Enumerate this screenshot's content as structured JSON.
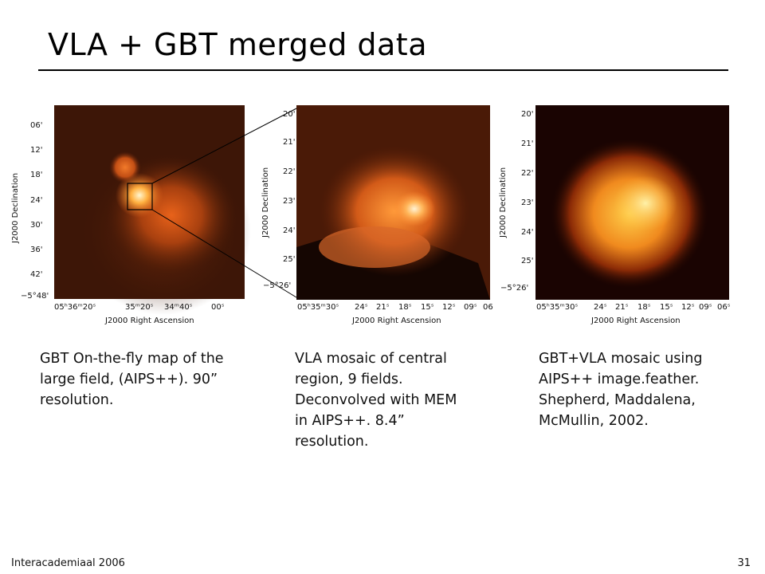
{
  "slide": {
    "title": "VLA + GBT merged data",
    "footer_left": "Interacademiaal 2006",
    "page_number": "31"
  },
  "panels": [
    {
      "y_ticks": [
        "06'",
        "12'",
        "18'",
        "24'",
        "30'",
        "36'",
        "42'",
        "−5°48'"
      ],
      "x_ticks": [
        "05ʰ36ᵐ20ˢ",
        "35ᵐ20ˢ",
        "34ᵐ40ˢ",
        "00ˢ"
      ],
      "x_label": "J2000 Right Ascension",
      "y_label": "J2000 Declination",
      "caption": [
        "GBT On-the-fly map of the",
        "large field, (AIPS++).  90”",
        "resolution."
      ]
    },
    {
      "y_ticks": [
        "20'",
        "21'",
        "22'",
        "23'",
        "24'",
        "25'",
        "−5°26'"
      ],
      "x_ticks": [
        "05ʰ35ᵐ30ˢ",
        "24ˢ",
        "21ˢ",
        "18ˢ",
        "15ˢ",
        "12ˢ",
        "09ˢ",
        "06"
      ],
      "x_label": "J2000 Right Ascension",
      "y_label": "J2000 Declination",
      "caption": [
        "VLA mosaic of central",
        "region, 9 fields.",
        "Deconvolved with MEM",
        "in AIPS++.  8.4”",
        "resolution."
      ]
    },
    {
      "y_ticks": [
        "20'",
        "21'",
        "22'",
        "23'",
        "24'",
        "25'",
        "−5°26'"
      ],
      "x_ticks": [
        "05ʰ35ᵐ30ˢ",
        "24ˢ",
        "21ˢ",
        "18ˢ",
        "15ˢ",
        "12ˢ",
        "09ˢ",
        "06ˢ"
      ],
      "x_label": "J2000 Right Ascension",
      "y_label": "J2000 Declination",
      "caption": [
        "GBT+VLA mosaic using",
        "AIPS++ image.feather.",
        "Shepherd, Maddalena,",
        "McMullin, 2002."
      ]
    }
  ]
}
